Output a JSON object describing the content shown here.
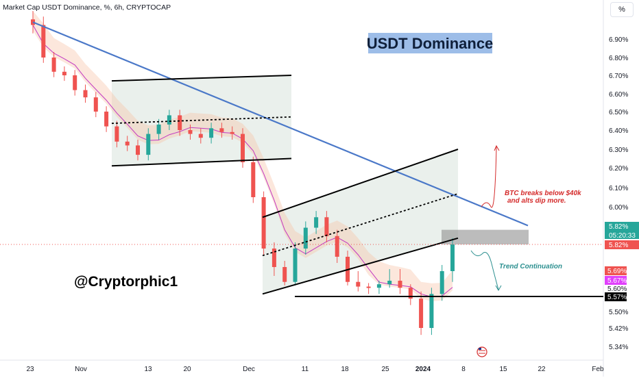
{
  "header": {
    "symbol_title": "Market Cap USDT Dominance, %, 6h, CRYPTOCAP",
    "percent_button": "%"
  },
  "annotations": {
    "title_box": "USDT Dominance",
    "watermark": "@Cryptorphic1",
    "btc_note_line1": "BTC breaks below $40k",
    "btc_note_line2": "and alts dip more.",
    "trend_note": "Trend Continuation"
  },
  "price_labels": {
    "last_price": "5.82%",
    "countdown": "05:20:33",
    "close_marker": "5.82%",
    "ma_label_1": "5.69%",
    "ma_label_2": "5.67%",
    "support_label": "5.57%",
    "plain_label": "5.60%"
  },
  "colors": {
    "up": "#26a69a",
    "down": "#ef5350",
    "trendline": "#4a78c8",
    "ma": "#c238c2",
    "cloud": "#f7c4a8",
    "channel_fill": "#e3ebe6",
    "zone_fill": "#8f8f8f",
    "title_box_bg": "#9dbde8",
    "btc_note": "#d42a2a",
    "trend_note": "#2b8f8f",
    "last_price_bg": "#26a69a",
    "close_bg": "#ef5350",
    "ma1_bg": "#ef5350",
    "ma2_bg": "#e040fb",
    "support_bg": "#000000"
  },
  "chart_data": {
    "type": "candlestick",
    "title": "Market Cap USDT Dominance, %, 6h, CRYPTOCAP",
    "ylabel": "%",
    "ylim": [
      5.3,
      7.0
    ],
    "y_ticks": [
      "6.90%",
      "6.80%",
      "6.70%",
      "6.60%",
      "6.50%",
      "6.40%",
      "6.30%",
      "6.20%",
      "6.10%",
      "6.00%",
      "5.50%",
      "5.42%",
      "5.34%"
    ],
    "x_ticks": [
      "23",
      "Nov",
      "13",
      "20",
      "Dec",
      "11",
      "18",
      "25",
      "2024",
      "8",
      "15",
      "22",
      "Feb"
    ],
    "series": [
      {
        "type": "candles",
        "values": [
          6.95,
          6.8,
          6.72,
          6.7,
          6.62,
          6.58,
          6.5,
          6.42,
          6.34,
          6.32,
          6.27,
          6.38,
          6.43,
          6.48,
          6.4,
          6.38,
          6.36,
          6.41,
          6.39,
          6.38,
          6.23,
          6.05,
          5.8,
          5.71,
          5.66,
          5.8,
          5.9,
          5.95,
          5.86,
          5.76,
          5.66,
          5.62,
          5.61,
          5.64,
          5.67,
          5.61,
          5.56,
          5.42,
          5.58,
          5.69,
          5.82
        ]
      },
      {
        "type": "line",
        "name": "moving average",
        "approx_end": 5.67
      }
    ],
    "levels": [
      {
        "label": "5.57%",
        "value": 5.57
      }
    ],
    "zones": [
      {
        "from": 5.82,
        "to": 5.89
      }
    ],
    "channels": [
      {
        "period": "Nov–Dec",
        "upper": [
          6.67,
          6.7
        ],
        "lower": [
          6.21,
          6.25
        ]
      },
      {
        "period": "Dec–Jan",
        "upper": [
          5.95,
          6.3
        ],
        "lower": [
          5.58,
          5.85
        ]
      }
    ],
    "trendline": {
      "start": 6.96,
      "end": 5.91
    },
    "last_value": 5.82,
    "grid": false,
    "legend": "none"
  }
}
